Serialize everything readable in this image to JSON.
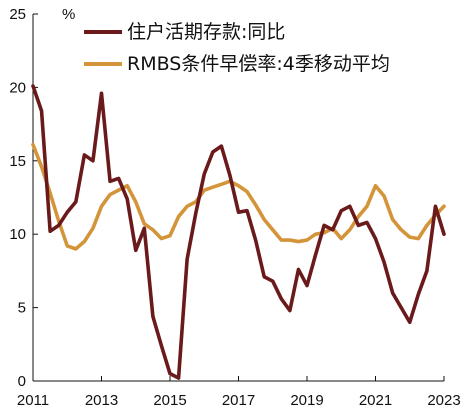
{
  "chart_data": {
    "type": "line",
    "unit": "%",
    "title": "",
    "xlabel": "",
    "ylabel": "",
    "xlim": [
      2011,
      2023
    ],
    "ylim": [
      0,
      25
    ],
    "x_ticks": [
      2011,
      2013,
      2015,
      2017,
      2019,
      2021,
      2023
    ],
    "x_tick_labels": [
      "2011",
      "2013",
      "2015",
      "2017",
      "2019",
      "2021",
      "2023"
    ],
    "y_ticks": [
      0,
      5,
      10,
      15,
      20,
      25
    ],
    "y_tick_labels": [
      "0",
      "5",
      "10",
      "15",
      "20",
      "25"
    ],
    "grid": false,
    "legend_position": "top-right",
    "series": [
      {
        "name": "住户活期存款:同比",
        "color": "#6b1a1c",
        "points": [
          [
            2011.0,
            20.1
          ],
          [
            2011.25,
            18.4
          ],
          [
            2011.5,
            10.2
          ],
          [
            2011.75,
            10.6
          ],
          [
            2012.0,
            11.5
          ],
          [
            2012.25,
            12.2
          ],
          [
            2012.5,
            15.4
          ],
          [
            2012.75,
            15.0
          ],
          [
            2013.0,
            19.6
          ],
          [
            2013.25,
            13.6
          ],
          [
            2013.5,
            13.8
          ],
          [
            2013.75,
            12.4
          ],
          [
            2014.0,
            8.9
          ],
          [
            2014.25,
            10.4
          ],
          [
            2014.5,
            4.4
          ],
          [
            2014.75,
            2.4
          ],
          [
            2015.0,
            0.5
          ],
          [
            2015.25,
            0.2
          ],
          [
            2015.5,
            8.3
          ],
          [
            2015.75,
            11.4
          ],
          [
            2016.0,
            14.1
          ],
          [
            2016.25,
            15.6
          ],
          [
            2016.5,
            16.0
          ],
          [
            2016.75,
            14.0
          ],
          [
            2017.0,
            11.5
          ],
          [
            2017.25,
            11.6
          ],
          [
            2017.5,
            9.6
          ],
          [
            2017.75,
            7.1
          ],
          [
            2018.0,
            6.8
          ],
          [
            2018.25,
            5.6
          ],
          [
            2018.5,
            4.8
          ],
          [
            2018.75,
            7.6
          ],
          [
            2019.0,
            6.5
          ],
          [
            2019.25,
            8.6
          ],
          [
            2019.5,
            10.6
          ],
          [
            2019.75,
            10.3
          ],
          [
            2020.0,
            11.6
          ],
          [
            2020.25,
            11.9
          ],
          [
            2020.5,
            10.6
          ],
          [
            2020.75,
            10.8
          ],
          [
            2021.0,
            9.7
          ],
          [
            2021.25,
            8.1
          ],
          [
            2021.5,
            6.0
          ],
          [
            2021.75,
            5.0
          ],
          [
            2022.0,
            4.0
          ],
          [
            2022.25,
            5.9
          ],
          [
            2022.5,
            7.5
          ],
          [
            2022.75,
            11.9
          ],
          [
            2023.0,
            10.0
          ]
        ]
      },
      {
        "name": "RMBS条件早偿率:4季移动平均",
        "color": "#d4943a",
        "points": [
          [
            2011.0,
            16.1
          ],
          [
            2011.25,
            14.6
          ],
          [
            2011.5,
            12.8
          ],
          [
            2011.75,
            10.9
          ],
          [
            2012.0,
            9.2
          ],
          [
            2012.25,
            9.0
          ],
          [
            2012.5,
            9.5
          ],
          [
            2012.75,
            10.4
          ],
          [
            2013.0,
            11.9
          ],
          [
            2013.25,
            12.7
          ],
          [
            2013.5,
            13.0
          ],
          [
            2013.75,
            13.3
          ],
          [
            2014.0,
            12.2
          ],
          [
            2014.25,
            10.7
          ],
          [
            2014.5,
            10.3
          ],
          [
            2014.75,
            9.7
          ],
          [
            2015.0,
            9.9
          ],
          [
            2015.25,
            11.2
          ],
          [
            2015.5,
            11.9
          ],
          [
            2015.75,
            12.2
          ],
          [
            2016.0,
            13.0
          ],
          [
            2016.25,
            13.2
          ],
          [
            2016.5,
            13.4
          ],
          [
            2016.75,
            13.6
          ],
          [
            2017.0,
            13.3
          ],
          [
            2017.25,
            12.9
          ],
          [
            2017.5,
            12.0
          ],
          [
            2017.75,
            11.0
          ],
          [
            2018.0,
            10.3
          ],
          [
            2018.25,
            9.6
          ],
          [
            2018.5,
            9.6
          ],
          [
            2018.75,
            9.5
          ],
          [
            2019.0,
            9.6
          ],
          [
            2019.25,
            10.0
          ],
          [
            2019.5,
            10.1
          ],
          [
            2019.75,
            10.4
          ],
          [
            2020.0,
            9.7
          ],
          [
            2020.25,
            10.3
          ],
          [
            2020.5,
            11.2
          ],
          [
            2020.75,
            11.9
          ],
          [
            2021.0,
            13.3
          ],
          [
            2021.25,
            12.6
          ],
          [
            2021.5,
            11.0
          ],
          [
            2021.75,
            10.3
          ],
          [
            2022.0,
            9.8
          ],
          [
            2022.25,
            9.7
          ],
          [
            2022.5,
            10.6
          ],
          [
            2022.75,
            11.3
          ],
          [
            2023.0,
            11.9
          ]
        ]
      }
    ]
  }
}
